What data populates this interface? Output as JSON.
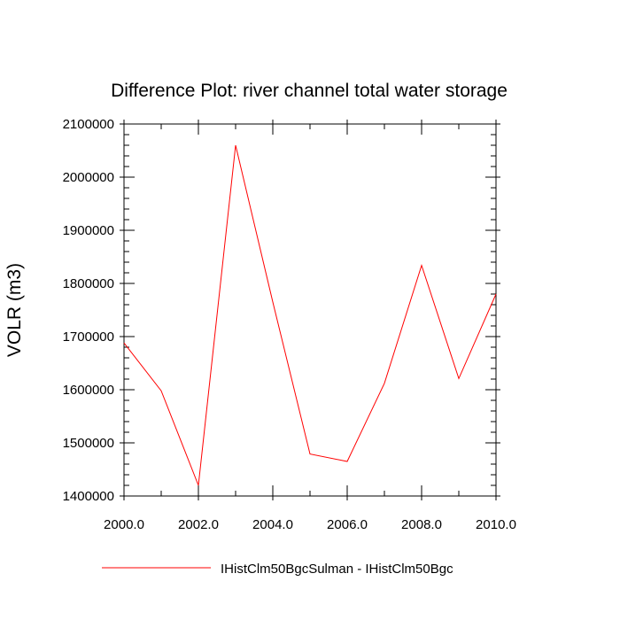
{
  "chart_data": {
    "type": "line",
    "title": "Difference Plot: river channel total water storage",
    "xlabel": "",
    "ylabel": "VOLR  (m3)",
    "xlim": [
      2000,
      2010
    ],
    "ylim": [
      1400000,
      2100000
    ],
    "x_ticks": [
      2000,
      2002,
      2004,
      2006,
      2008,
      2010
    ],
    "x_tick_labels": [
      "2000.0",
      "2002.0",
      "2004.0",
      "2006.0",
      "2008.0",
      "2010.0"
    ],
    "y_ticks": [
      1400000,
      1500000,
      1600000,
      1700000,
      1800000,
      1900000,
      2000000,
      2100000
    ],
    "y_tick_labels": [
      "1400000",
      "1500000",
      "1600000",
      "1700000",
      "1800000",
      "1900000",
      "2000000",
      "2100000"
    ],
    "grid": false,
    "legend_position": "bottom",
    "series": [
      {
        "name": "IHistClm50BgcSulman - IHistClm50Bgc",
        "color": "#ff0000",
        "x": [
          2000,
          2001,
          2002,
          2003,
          2004,
          2005,
          2006,
          2007,
          2008,
          2009,
          2010
        ],
        "y": [
          1688000,
          1598000,
          1420000,
          2060000,
          1765000,
          1479000,
          1465000,
          1612000,
          1834000,
          1621000,
          1780000
        ]
      }
    ]
  }
}
